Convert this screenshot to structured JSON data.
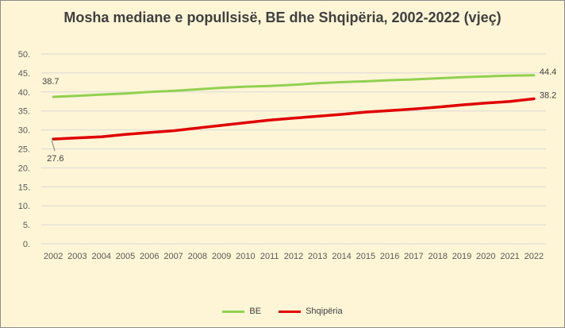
{
  "chart_data": {
    "type": "line",
    "title": "Mosha mediane e popullsisë, BE dhe Shqipëria, 2002-2022 (vjeç)",
    "xlabel": "",
    "ylabel": "",
    "ylim": [
      0,
      50
    ],
    "yticks": [
      "0.",
      "5.",
      "10.",
      "15.",
      "20.",
      "25.",
      "30.",
      "35.",
      "40.",
      "45.",
      "50."
    ],
    "grid": true,
    "legend_position": "bottom",
    "categories": [
      "2002",
      "2003",
      "2004",
      "2005",
      "2006",
      "2007",
      "2008",
      "2009",
      "2010",
      "2011",
      "2012",
      "2013",
      "2014",
      "2015",
      "2016",
      "2017",
      "2018",
      "2019",
      "2020",
      "2021",
      "2022"
    ],
    "series": [
      {
        "name": "BE",
        "color": "#92d050",
        "values": [
          38.7,
          39.0,
          39.3,
          39.6,
          40.0,
          40.3,
          40.7,
          41.1,
          41.4,
          41.6,
          41.9,
          42.3,
          42.6,
          42.8,
          43.1,
          43.3,
          43.6,
          43.9,
          44.1,
          44.3,
          44.4
        ]
      },
      {
        "name": "Shqipëria",
        "color": "#e00000",
        "values": [
          27.6,
          27.9,
          28.2,
          28.8,
          29.3,
          29.8,
          30.5,
          31.2,
          31.9,
          32.6,
          33.1,
          33.6,
          34.1,
          34.7,
          35.1,
          35.5,
          36.0,
          36.6,
          37.1,
          37.5,
          38.2
        ]
      }
    ],
    "data_labels": [
      {
        "series": 0,
        "index": 0,
        "text": "38.7",
        "side": "left"
      },
      {
        "series": 0,
        "index": 20,
        "text": "44.4",
        "side": "right"
      },
      {
        "series": 1,
        "index": 0,
        "text": "27.6",
        "side": "below"
      },
      {
        "series": 1,
        "index": 20,
        "text": "38.2",
        "side": "right"
      }
    ]
  }
}
